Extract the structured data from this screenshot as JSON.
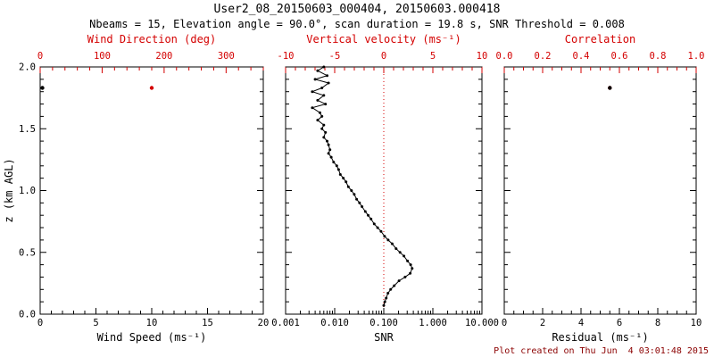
{
  "header": {
    "title": "User2_08_20150603_000404, 20150603.000418",
    "subtitle": "Nbeams = 15, Elevation angle = 90.0°, scan duration = 19.8 s, SNR Threshold = 0.008"
  },
  "footer": {
    "created": "Plot created on Thu Jun  4 03:01:48 2015"
  },
  "colors": {
    "axis": "#000000",
    "secondary": "#d40000",
    "background": "#ffffff",
    "footer_text": "#8b0000"
  },
  "chart_data": [
    {
      "id": "wind",
      "type": "scatter",
      "xlabel": "Wind Speed (ms⁻¹)",
      "xlim": [
        0,
        20
      ],
      "xticks": [
        0,
        5,
        10,
        15,
        20
      ],
      "xtick_labels": [
        "0",
        "5",
        "10",
        "15",
        "20"
      ],
      "x2label": "Wind Direction (deg)",
      "x2lim": [
        0,
        360
      ],
      "x2ticks": [
        0,
        100,
        200,
        300
      ],
      "x2tick_labels": [
        "0",
        "100",
        "200",
        "300"
      ],
      "ylabel": "z (km AGL)",
      "ylim": [
        0,
        2
      ],
      "yticks": [
        0,
        0.5,
        1,
        1.5,
        2
      ],
      "ytick_labels": [
        "0.0",
        "0.5",
        "1.0",
        "1.5",
        "2.0"
      ],
      "series": [
        {
          "name": "wind-speed",
          "axis": "x1",
          "color": "#000000",
          "marker_size": 2.2,
          "points": [
            [
              0.2,
              1.83
            ]
          ]
        },
        {
          "name": "wind-direction",
          "axis": "x2",
          "color": "#d40000",
          "marker_size": 2.2,
          "points": [
            [
              180,
              1.83
            ]
          ]
        }
      ]
    },
    {
      "id": "snr",
      "type": "line-scatter",
      "xlabel": "SNR",
      "xscale": "log",
      "xlim": [
        0.001,
        10
      ],
      "xticks": [
        0.001,
        0.01,
        0.1,
        1,
        10
      ],
      "xtick_labels": [
        "0.001",
        "0.010",
        "0.100",
        "1.000",
        "10.000"
      ],
      "x2label": "Vertical velocity (ms⁻¹)",
      "x2lim": [
        -10,
        10
      ],
      "x2ticks": [
        -10,
        -5,
        0,
        5,
        10
      ],
      "x2tick_labels": [
        "-10",
        "-5",
        "0",
        "5",
        "10"
      ],
      "ylim": [
        0,
        2
      ],
      "yticks": [
        0,
        0.5,
        1,
        1.5,
        2
      ],
      "refline": {
        "axis": "x2",
        "value": 0,
        "color": "#d40000",
        "style": "dotted"
      },
      "series": [
        {
          "name": "snr-profile",
          "axis": "x1",
          "color": "#000000",
          "line": true,
          "marker_size": 1.5,
          "points": [
            [
              0.006,
              2.0
            ],
            [
              0.0045,
              1.97
            ],
            [
              0.007,
              1.93
            ],
            [
              0.004,
              1.9
            ],
            [
              0.0075,
              1.87
            ],
            [
              0.0055,
              1.83
            ],
            [
              0.0035,
              1.8
            ],
            [
              0.006,
              1.77
            ],
            [
              0.0045,
              1.73
            ],
            [
              0.0065,
              1.7
            ],
            [
              0.0035,
              1.67
            ],
            [
              0.005,
              1.63
            ],
            [
              0.0055,
              1.6
            ],
            [
              0.0045,
              1.57
            ],
            [
              0.006,
              1.53
            ],
            [
              0.0055,
              1.5
            ],
            [
              0.0065,
              1.47
            ],
            [
              0.006,
              1.43
            ],
            [
              0.007,
              1.4
            ],
            [
              0.0075,
              1.37
            ],
            [
              0.008,
              1.33
            ],
            [
              0.0075,
              1.3
            ],
            [
              0.0085,
              1.27
            ],
            [
              0.0095,
              1.23
            ],
            [
              0.011,
              1.2
            ],
            [
              0.012,
              1.17
            ],
            [
              0.013,
              1.13
            ],
            [
              0.015,
              1.1
            ],
            [
              0.017,
              1.07
            ],
            [
              0.019,
              1.03
            ],
            [
              0.022,
              1.0
            ],
            [
              0.025,
              0.97
            ],
            [
              0.028,
              0.93
            ],
            [
              0.032,
              0.9
            ],
            [
              0.036,
              0.87
            ],
            [
              0.042,
              0.83
            ],
            [
              0.048,
              0.8
            ],
            [
              0.055,
              0.77
            ],
            [
              0.064,
              0.73
            ],
            [
              0.075,
              0.7
            ],
            [
              0.088,
              0.67
            ],
            [
              0.104,
              0.63
            ],
            [
              0.123,
              0.6
            ],
            [
              0.148,
              0.57
            ],
            [
              0.178,
              0.53
            ],
            [
              0.214,
              0.5
            ],
            [
              0.258,
              0.47
            ],
            [
              0.305,
              0.43
            ],
            [
              0.352,
              0.4
            ],
            [
              0.378,
              0.37
            ],
            [
              0.345,
              0.33
            ],
            [
              0.272,
              0.3
            ],
            [
              0.205,
              0.27
            ],
            [
              0.163,
              0.23
            ],
            [
              0.138,
              0.2
            ],
            [
              0.122,
              0.17
            ],
            [
              0.112,
              0.13
            ],
            [
              0.105,
              0.1
            ],
            [
              0.1,
              0.07
            ]
          ]
        }
      ]
    },
    {
      "id": "residual",
      "type": "scatter",
      "xlabel": "Residual (ms⁻¹)",
      "xlim": [
        0,
        10
      ],
      "xticks": [
        0,
        2,
        4,
        6,
        8,
        10
      ],
      "xtick_labels": [
        "0",
        "2",
        "4",
        "6",
        "8",
        "10"
      ],
      "x2label": "Correlation",
      "x2lim": [
        0,
        1
      ],
      "x2ticks": [
        0,
        0.2,
        0.4,
        0.6,
        0.8,
        1
      ],
      "x2tick_labels": [
        "0.0",
        "0.2",
        "0.4",
        "0.6",
        "0.8",
        "1.0"
      ],
      "ylim": [
        0,
        2
      ],
      "yticks": [
        0,
        0.5,
        1,
        1.5,
        2
      ],
      "series": [
        {
          "name": "correlation",
          "axis": "x2",
          "color": "#d40000",
          "marker_size": 2.2,
          "points": [
            [
              0.55,
              1.83
            ]
          ]
        },
        {
          "name": "residual",
          "axis": "x1",
          "color": "#000000",
          "marker_size": 2.2,
          "points": [
            [
              5.5,
              1.83
            ]
          ]
        }
      ]
    }
  ]
}
